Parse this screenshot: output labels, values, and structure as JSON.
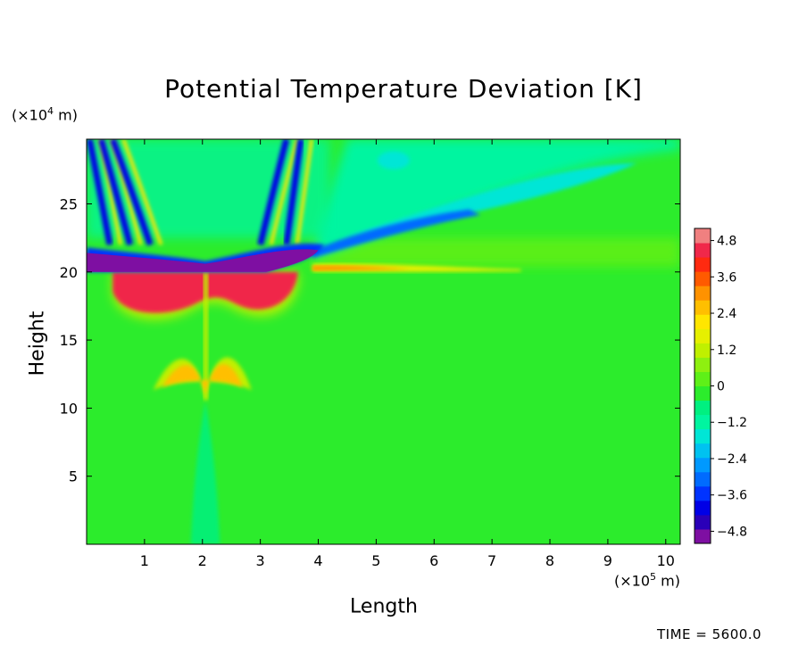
{
  "chart_data": {
    "type": "heatmap",
    "title": "Potential Temperature Deviation [K]",
    "xlabel": "Length",
    "ylabel": "Height",
    "x_unit_text": "(×10",
    "x_unit_exp": "5",
    "x_unit_tail": " m)",
    "y_unit_text": "(×10",
    "y_unit_exp": "4",
    "y_unit_tail": " m)",
    "xlim": [
      0,
      10.25
    ],
    "ylim": [
      0,
      29.75
    ],
    "xticks": [
      1,
      2,
      3,
      4,
      5,
      6,
      7,
      8,
      9,
      10
    ],
    "yticks": [
      5,
      10,
      15,
      20,
      25
    ],
    "colorbar": {
      "range": [
        -5.2,
        5.2
      ],
      "ticks": [
        {
          "value": 4.8,
          "label": "4.8"
        },
        {
          "value": 3.6,
          "label": "3.6"
        },
        {
          "value": 2.4,
          "label": "2.4"
        },
        {
          "value": 1.2,
          "label": "1.2"
        },
        {
          "value": 0,
          "label": "0"
        },
        {
          "value": -1.2,
          "label": "−1.2"
        },
        {
          "value": -2.4,
          "label": "−2.4"
        },
        {
          "value": -3.6,
          "label": "−3.6"
        },
        {
          "value": -4.8,
          "label": "−4.8"
        }
      ],
      "colors": [
        "#7e0fa2",
        "#2a00b8",
        "#0000e6",
        "#0033ff",
        "#006bff",
        "#0099ff",
        "#00c2f0",
        "#00e6d6",
        "#00f5a0",
        "#00f080",
        "#2cec2c",
        "#5ef018",
        "#8ef010",
        "#c0f000",
        "#e6f000",
        "#ffe600",
        "#ffbf00",
        "#ff9200",
        "#ff5a00",
        "#ff2a10",
        "#f0284a",
        "#f08080"
      ],
      "colormap": "rainbow (purple → blue → cyan → green → yellow → red → pink)"
    },
    "features": [
      {
        "name": "negative-band-aloft",
        "x": [
          0,
          4.1
        ],
        "y": [
          20,
          22.5
        ],
        "value": -4.8
      },
      {
        "name": "positive-lobes-below",
        "x": [
          0.4,
          3.7
        ],
        "y": [
          16,
          20
        ],
        "value": 4.5
      },
      {
        "name": "positive-plume-mid",
        "x": [
          1.1,
          2.9
        ],
        "y": [
          10.5,
          14.8
        ],
        "value": 2.5
      },
      {
        "name": "warm-layer-tail",
        "x": [
          3.9,
          7.5
        ],
        "y": [
          20,
          20.6
        ],
        "value": 3.0
      },
      {
        "name": "cool-streamer",
        "x": [
          3.9,
          10.25
        ],
        "y": [
          20.5,
          29
        ],
        "value": -2.0
      },
      {
        "name": "cyan-column",
        "x": [
          1.8,
          2.3
        ],
        "y": [
          0,
          10.5
        ],
        "value": -0.8
      }
    ],
    "grid": false,
    "legend": "colorbar-right"
  },
  "timestamp_text": "TIME = 5600.0"
}
